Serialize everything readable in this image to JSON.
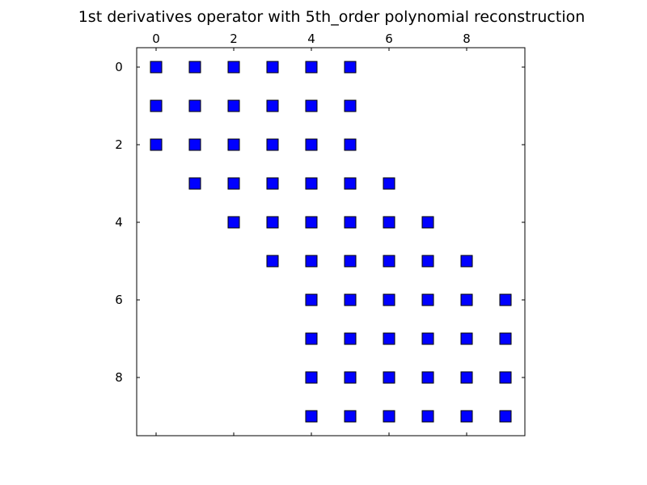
{
  "chart_data": {
    "type": "scatter",
    "title": "1st derivatives operator with 5th_order polynomial reconstruction",
    "xlabel": "",
    "ylabel": "",
    "x_ticks": [
      0,
      2,
      4,
      6,
      8
    ],
    "y_ticks": [
      0,
      2,
      4,
      6,
      8
    ],
    "xlim": [
      -0.5,
      9.5
    ],
    "ylim": [
      -0.5,
      9.5
    ],
    "y_inverted": true,
    "x_axis_position": "top",
    "grid": false,
    "marker": "square",
    "color": "#0000ff",
    "rows": [
      {
        "row": 0,
        "cols": [
          0,
          1,
          2,
          3,
          4,
          5
        ]
      },
      {
        "row": 1,
        "cols": [
          0,
          1,
          2,
          3,
          4,
          5
        ]
      },
      {
        "row": 2,
        "cols": [
          0,
          1,
          2,
          3,
          4,
          5
        ]
      },
      {
        "row": 3,
        "cols": [
          1,
          2,
          3,
          4,
          5,
          6
        ]
      },
      {
        "row": 4,
        "cols": [
          2,
          3,
          4,
          5,
          6,
          7
        ]
      },
      {
        "row": 5,
        "cols": [
          3,
          4,
          5,
          6,
          7,
          8
        ]
      },
      {
        "row": 6,
        "cols": [
          4,
          5,
          6,
          7,
          8,
          9
        ]
      },
      {
        "row": 7,
        "cols": [
          4,
          5,
          6,
          7,
          8,
          9
        ]
      },
      {
        "row": 8,
        "cols": [
          4,
          5,
          6,
          7,
          8,
          9
        ]
      },
      {
        "row": 9,
        "cols": [
          4,
          5,
          6,
          7,
          8,
          9
        ]
      }
    ]
  }
}
